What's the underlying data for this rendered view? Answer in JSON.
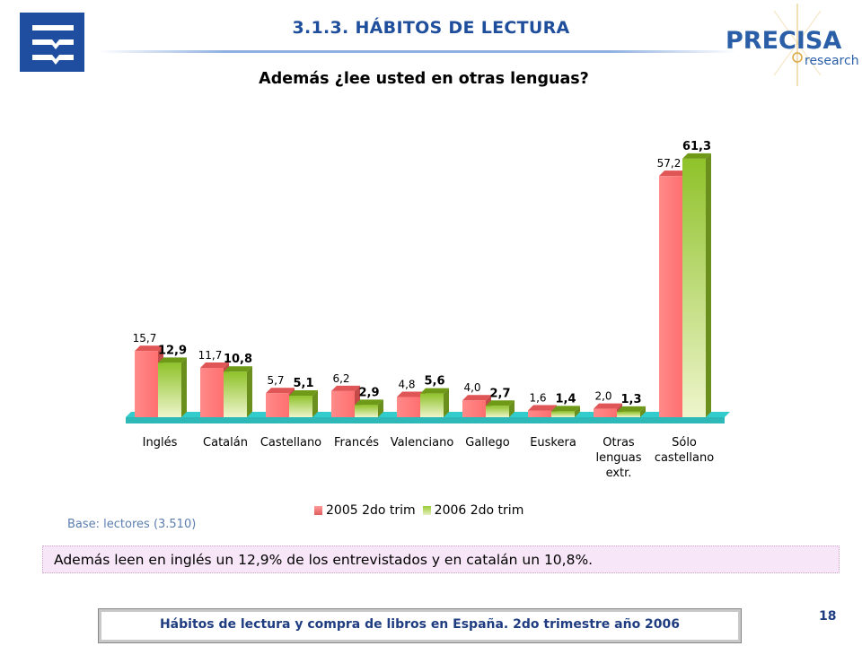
{
  "header": {
    "section_title": "3.1.3.  HÁBITOS DE LECTURA",
    "brand": "PRECISA",
    "brand_sub": "research"
  },
  "question": "Además ¿lee usted en otras lenguas?",
  "colors": {
    "series1": "#ff7f7f",
    "series2": "#99cc33",
    "floor": "#33cccc",
    "title": "#1f4e9c"
  },
  "chart_data": {
    "type": "bar",
    "categories": [
      [
        "Inglés"
      ],
      [
        "Catalán"
      ],
      [
        "Castellano"
      ],
      [
        "Francés"
      ],
      [
        "Valenciano"
      ],
      [
        "Gallego"
      ],
      [
        "Euskera"
      ],
      [
        "Otras",
        "lenguas",
        "extr."
      ],
      [
        "Sólo",
        "castellano"
      ]
    ],
    "series": [
      {
        "name": "2005 2do trim",
        "values": [
          15.7,
          11.7,
          5.7,
          6.2,
          4.8,
          4.0,
          1.6,
          2.0,
          57.2
        ],
        "labels": [
          "15,7",
          "11,7",
          "5,7",
          "6,2",
          "4,8",
          "4,0",
          "1,6",
          "2,0",
          "57,2"
        ]
      },
      {
        "name": "2006 2do trim",
        "values": [
          12.9,
          10.8,
          5.1,
          2.9,
          5.6,
          2.7,
          1.4,
          1.3,
          61.3
        ],
        "labels": [
          "12,9",
          "10,8",
          "5,1",
          "2,9",
          "5,6",
          "2,7",
          "1,4",
          "1,3",
          "61,3"
        ]
      }
    ],
    "ylim": [
      0,
      65
    ],
    "legend_position": "bottom"
  },
  "base_note": "Base: lectores (3.510)",
  "summary": "Además leen en inglés un 12,9% de los entrevistados y en catalán un 10,8%.",
  "footer": {
    "text": "Hábitos de lectura y compra de libros en España. 2do trimestre año 2006",
    "page_number": "18"
  }
}
